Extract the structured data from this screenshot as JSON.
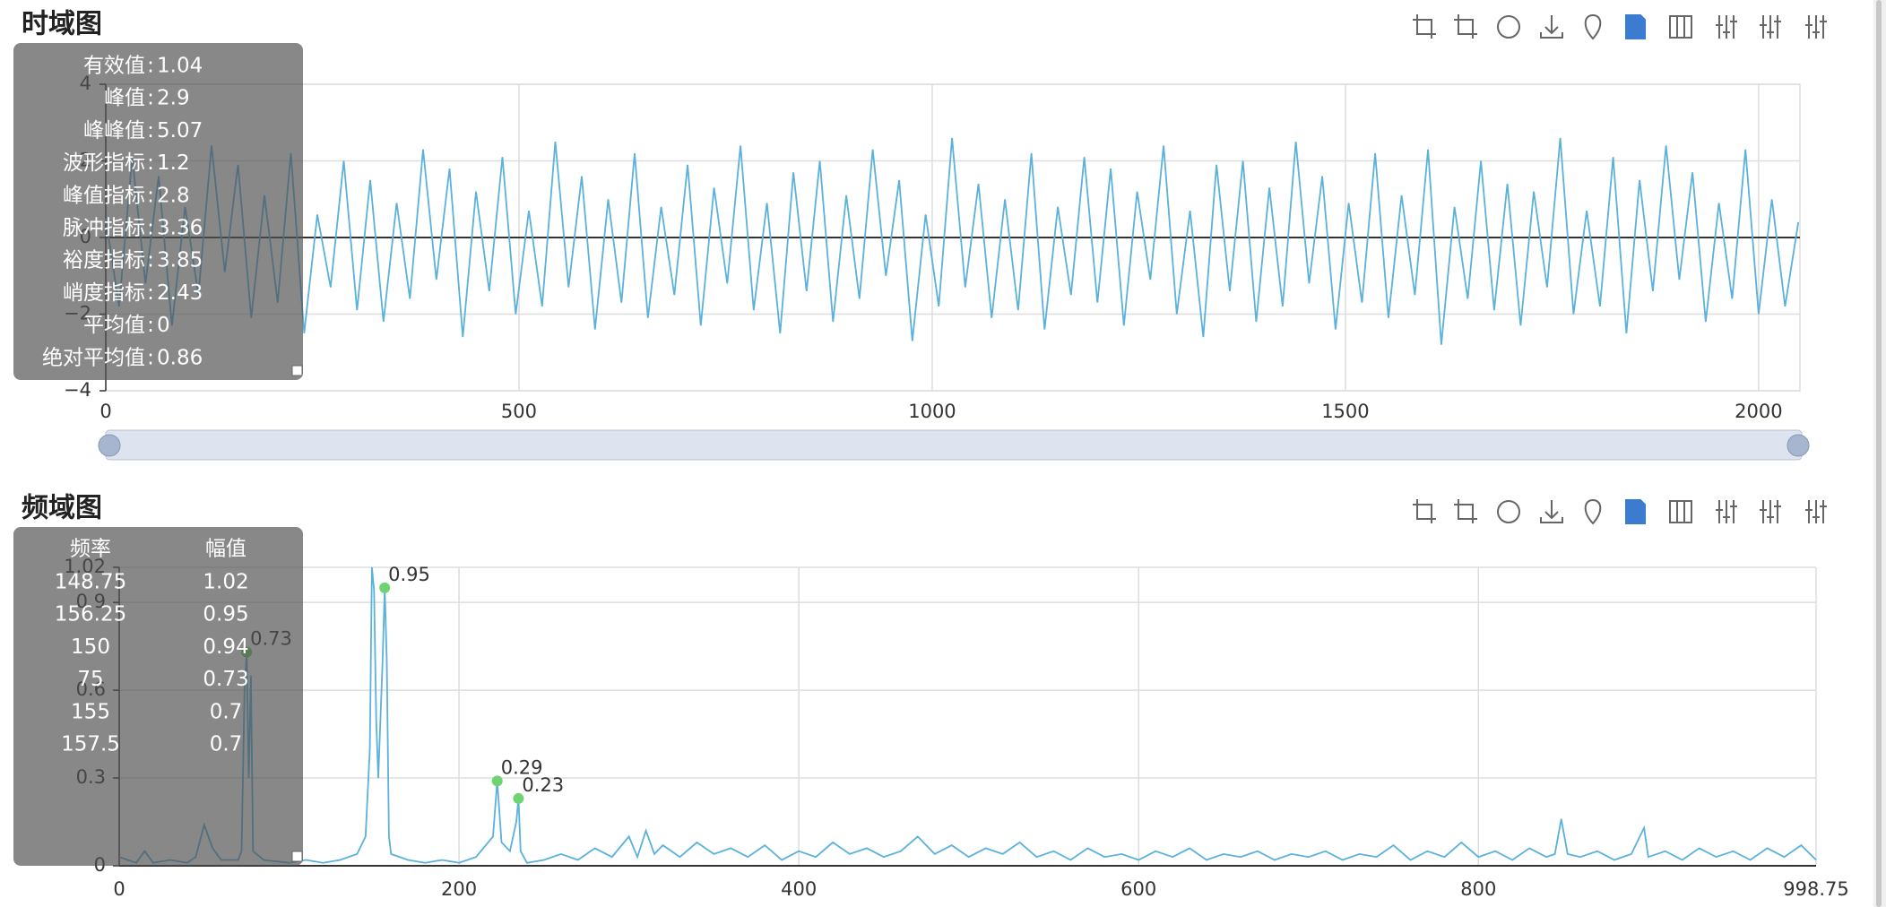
{
  "chart_data": [
    {
      "type": "line",
      "title": "时域图",
      "color": "#5ab1dc",
      "xlim": [
        0,
        2050
      ],
      "xticks": [
        0,
        500,
        1000,
        1500,
        2000
      ],
      "ylim": [
        -4,
        4
      ],
      "yticks": [
        {
          "value": -4,
          "label": "−4"
        },
        {
          "value": -2,
          "label": "−2"
        },
        0,
        2,
        4
      ],
      "grid": true,
      "x": [
        0,
        16,
        32,
        48,
        64,
        80,
        96,
        112,
        128,
        144,
        160,
        176,
        192,
        208,
        224,
        240,
        256,
        272,
        288,
        304,
        320,
        336,
        352,
        368,
        384,
        400,
        416,
        432,
        448,
        464,
        480,
        496,
        512,
        528,
        544,
        560,
        576,
        592,
        608,
        624,
        640,
        656,
        672,
        688,
        704,
        720,
        736,
        752,
        768,
        784,
        800,
        816,
        832,
        848,
        864,
        880,
        896,
        912,
        928,
        944,
        960,
        976,
        992,
        1008,
        1024,
        1040,
        1056,
        1072,
        1088,
        1104,
        1120,
        1136,
        1152,
        1168,
        1184,
        1200,
        1216,
        1232,
        1248,
        1264,
        1280,
        1296,
        1312,
        1328,
        1344,
        1360,
        1376,
        1392,
        1408,
        1424,
        1440,
        1456,
        1472,
        1488,
        1504,
        1520,
        1536,
        1552,
        1568,
        1584,
        1600,
        1616,
        1632,
        1648,
        1664,
        1680,
        1696,
        1712,
        1728,
        1744,
        1760,
        1776,
        1792,
        1808,
        1824,
        1840,
        1856,
        1872,
        1888,
        1904,
        1920,
        1936,
        1952,
        1968,
        1984,
        2000,
        2016,
        2032,
        2048
      ],
      "values": [
        0.5,
        -1.8,
        2.1,
        -1.2,
        1.6,
        -2.3,
        0.8,
        -1.5,
        2.4,
        -0.9,
        1.9,
        -2.1,
        1.1,
        -1.7,
        2.2,
        -2.5,
        0.6,
        -1.3,
        2.0,
        -1.9,
        1.5,
        -2.2,
        0.9,
        -1.6,
        2.3,
        -1.1,
        1.8,
        -2.6,
        1.2,
        -1.4,
        2.1,
        -2.0,
        0.7,
        -1.8,
        2.5,
        -1.3,
        1.6,
        -2.4,
        1.0,
        -1.7,
        2.2,
        -2.1,
        0.8,
        -1.5,
        1.9,
        -2.3,
        1.3,
        -1.2,
        2.4,
        -1.9,
        0.9,
        -2.5,
        1.7,
        -1.4,
        2.0,
        -2.2,
        1.1,
        -1.6,
        2.3,
        -1.0,
        1.5,
        -2.7,
        0.6,
        -1.8,
        2.6,
        -1.3,
        1.4,
        -2.1,
        1.0,
        -1.9,
        2.2,
        -2.4,
        0.8,
        -1.5,
        2.1,
        -1.7,
        1.8,
        -2.3,
        1.2,
        -1.1,
        2.4,
        -2.0,
        0.7,
        -2.6,
        1.9,
        -1.4,
        2.0,
        -2.2,
        1.3,
        -1.8,
        2.5,
        -1.2,
        1.6,
        -2.4,
        0.9,
        -1.7,
        2.2,
        -2.1,
        1.1,
        -1.5,
        2.3,
        -2.8,
        0.8,
        -1.6,
        2.0,
        -1.9,
        1.4,
        -2.3,
        1.2,
        -1.3,
        2.6,
        -2.0,
        0.7,
        -1.8,
        2.1,
        -2.5,
        1.5,
        -1.4,
        2.4,
        -1.1,
        1.7,
        -2.2,
        0.9,
        -1.6,
        2.3,
        -2.0,
        1.0,
        -1.8,
        0.4
      ],
      "separator": " : ",
      "stats": [
        {
          "name": "有效值",
          "value": 1.04
        },
        {
          "name": "峰值",
          "value": 2.9
        },
        {
          "name": "峰峰值",
          "value": 5.07
        },
        {
          "name": "波形指标",
          "value": 1.2
        },
        {
          "name": "峰值指标",
          "value": 2.8
        },
        {
          "name": "脉冲指标",
          "value": 3.36
        },
        {
          "name": "裕度指标",
          "value": 3.85
        },
        {
          "name": "峭度指标",
          "value": 2.43
        },
        {
          "name": "平均值",
          "value": 0
        },
        {
          "name": "绝对平均值",
          "value": 0.86
        }
      ]
    },
    {
      "type": "line",
      "title": "频域图",
      "color": "#5ab1dc",
      "xlim": [
        0,
        998.75
      ],
      "xticks": [
        0,
        200,
        400,
        600,
        800,
        998.75
      ],
      "ylim": [
        0,
        1.02
      ],
      "yticks": [
        0,
        0.3,
        0.6,
        0.9,
        1.02
      ],
      "grid": true,
      "x": [
        0,
        5,
        10,
        15,
        20,
        30,
        40,
        45,
        50,
        55,
        60,
        65,
        70,
        72,
        73.75,
        75,
        76.25,
        77.5,
        78.75,
        85,
        100,
        110,
        120,
        130,
        140,
        145,
        147.5,
        148.75,
        150,
        151.25,
        152.5,
        155,
        156.25,
        157.5,
        158.75,
        160,
        170,
        180,
        190,
        200,
        210,
        220,
        222.5,
        225,
        230,
        233.75,
        235,
        236.25,
        240,
        250,
        260,
        270,
        280,
        290,
        300,
        305,
        310,
        315,
        320,
        330,
        340,
        350,
        360,
        370,
        380,
        390,
        400,
        410,
        420,
        430,
        440,
        450,
        460,
        470,
        480,
        490,
        500,
        510,
        520,
        530,
        540,
        550,
        560,
        570,
        580,
        590,
        600,
        610,
        620,
        630,
        640,
        650,
        660,
        670,
        680,
        690,
        700,
        710,
        720,
        730,
        740,
        750,
        760,
        770,
        780,
        790,
        800,
        810,
        820,
        830,
        840,
        845,
        848.75,
        852.5,
        860,
        870,
        880,
        890,
        897.5,
        900,
        910,
        920,
        930,
        940,
        950,
        960,
        970,
        980,
        990,
        998.75
      ],
      "values": [
        0.03,
        0.02,
        0.01,
        0.05,
        0.01,
        0.02,
        0.01,
        0.03,
        0.14,
        0.06,
        0.02,
        0.02,
        0.02,
        0.05,
        0.6,
        0.73,
        0.3,
        0.65,
        0.05,
        0.02,
        0.01,
        0.02,
        0.01,
        0.02,
        0.04,
        0.1,
        0.4,
        1.02,
        0.94,
        0.5,
        0.3,
        0.7,
        0.95,
        0.7,
        0.1,
        0.04,
        0.02,
        0.01,
        0.02,
        0.01,
        0.03,
        0.1,
        0.29,
        0.08,
        0.05,
        0.15,
        0.23,
        0.05,
        0.01,
        0.02,
        0.04,
        0.02,
        0.06,
        0.03,
        0.1,
        0.03,
        0.12,
        0.04,
        0.07,
        0.03,
        0.08,
        0.04,
        0.06,
        0.03,
        0.07,
        0.02,
        0.05,
        0.03,
        0.08,
        0.04,
        0.06,
        0.03,
        0.05,
        0.1,
        0.04,
        0.07,
        0.03,
        0.06,
        0.04,
        0.08,
        0.03,
        0.05,
        0.02,
        0.06,
        0.03,
        0.04,
        0.02,
        0.05,
        0.03,
        0.06,
        0.02,
        0.04,
        0.03,
        0.05,
        0.02,
        0.04,
        0.03,
        0.05,
        0.02,
        0.04,
        0.03,
        0.07,
        0.02,
        0.05,
        0.03,
        0.08,
        0.03,
        0.05,
        0.02,
        0.06,
        0.03,
        0.04,
        0.16,
        0.04,
        0.03,
        0.05,
        0.02,
        0.04,
        0.13,
        0.03,
        0.05,
        0.02,
        0.06,
        0.03,
        0.05,
        0.02,
        0.06,
        0.03,
        0.07,
        0.02
      ],
      "markers": [
        {
          "x": 156.25,
          "y": 0.95
        },
        {
          "x": 75,
          "y": 0.73
        },
        {
          "x": 222.5,
          "y": 0.29
        },
        {
          "x": 235,
          "y": 0.23
        }
      ],
      "marker_color": "#6fd46f",
      "table": {
        "columns": [
          "频率",
          "幅值"
        ],
        "rows": [
          [
            148.75,
            1.02
          ],
          [
            156.25,
            0.95
          ],
          [
            150,
            0.94
          ],
          [
            75,
            0.73
          ],
          [
            155,
            0.7
          ],
          [
            157.5,
            0.7
          ]
        ]
      }
    }
  ]
}
